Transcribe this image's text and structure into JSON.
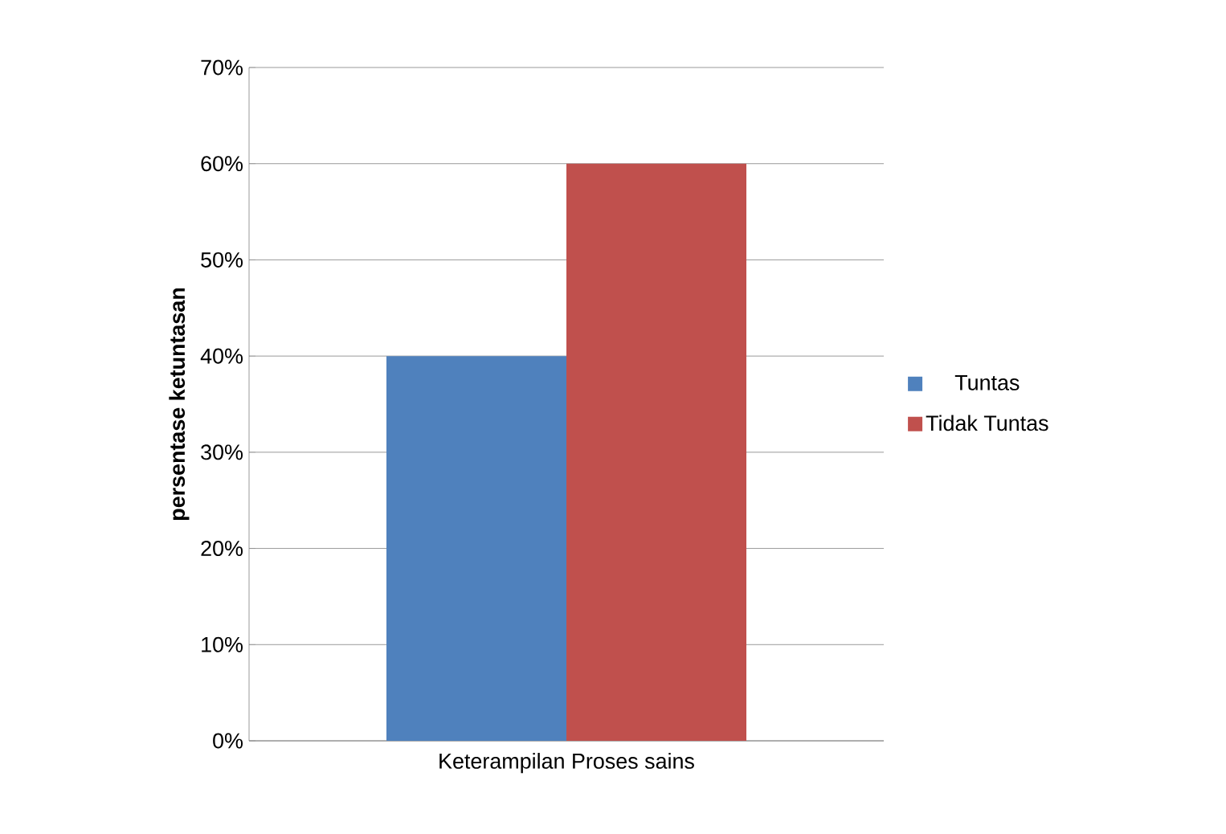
{
  "chart_data": {
    "type": "bar",
    "ylabel": "persentase ketuntasan",
    "categories": [
      "Keterampilan Proses sains"
    ],
    "series": [
      {
        "name": "Tuntas",
        "color": "#4f81bd",
        "values": [
          40
        ]
      },
      {
        "name": "Tidak Tuntas",
        "color": "#c0504d",
        "values": [
          60
        ]
      }
    ],
    "ylim": [
      0,
      70
    ],
    "yticks": [
      {
        "value": 0,
        "label": "0%"
      },
      {
        "value": 10,
        "label": "10%"
      },
      {
        "value": 20,
        "label": "20%"
      },
      {
        "value": 30,
        "label": "30%"
      },
      {
        "value": 40,
        "label": "40%"
      },
      {
        "value": 50,
        "label": "50%"
      },
      {
        "value": 60,
        "label": "60%"
      },
      {
        "value": 70,
        "label": "70%"
      }
    ],
    "grid": "y",
    "legend": "right"
  }
}
